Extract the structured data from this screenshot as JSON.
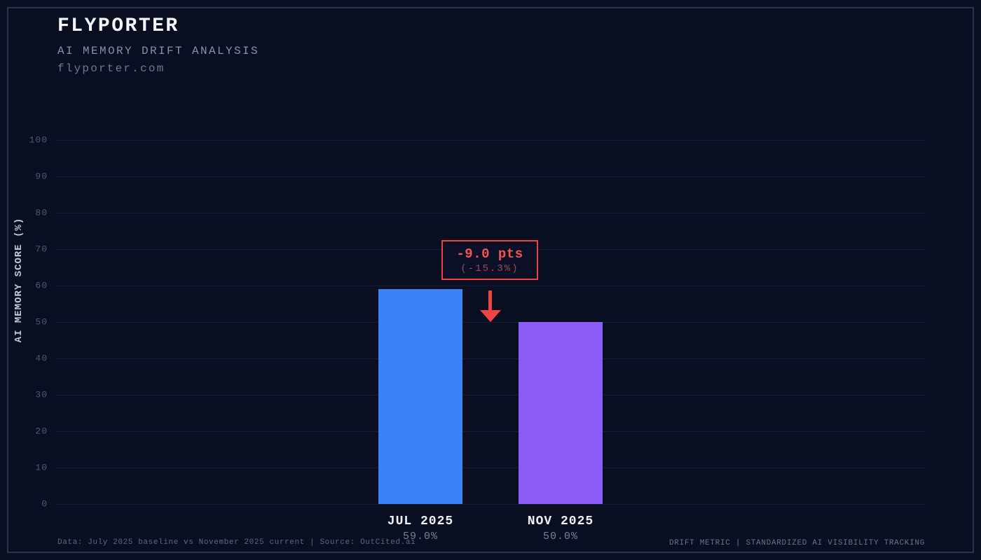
{
  "header": {
    "title": "FLYPORTER",
    "subtitle": "AI MEMORY DRIFT ANALYSIS",
    "domain": "flyporter.com"
  },
  "chart_data": {
    "type": "bar",
    "title": "FLYPORTER",
    "subtitle": "AI MEMORY DRIFT ANALYSIS",
    "domain_label": "flyporter.com",
    "categories": [
      "JUL 2025",
      "NOV 2025"
    ],
    "values": [
      59.0,
      50.0
    ],
    "value_labels": [
      "59.0%",
      "50.0%"
    ],
    "series_colors": [
      "#3b82f6",
      "#8b5cf6"
    ],
    "ylabel": "AI MEMORY SCORE (%)",
    "xlabel": "",
    "ylim": [
      0,
      100
    ],
    "yticks": [
      0,
      10,
      20,
      30,
      40,
      50,
      60,
      70,
      80,
      90,
      100
    ],
    "grid": "horizontal",
    "legend": "none",
    "annotation": {
      "delta": "-9.0 pts",
      "percent": "(-15.3%)",
      "color": "#ef4444",
      "arrow": "down"
    }
  },
  "footer": {
    "left": "Data: July 2025 baseline vs November 2025 current | Source: OutCited.ai",
    "right": "DRIFT METRIC | STANDARDIZED AI VISIBILITY TRACKING"
  },
  "colors": {
    "background": "#0a0e21",
    "frame_border": "#2b3352",
    "gridline": "#161d38",
    "bar_jul": "#3b82f6",
    "bar_nov": "#8b5cf6",
    "accent_red": "#ef4444"
  }
}
